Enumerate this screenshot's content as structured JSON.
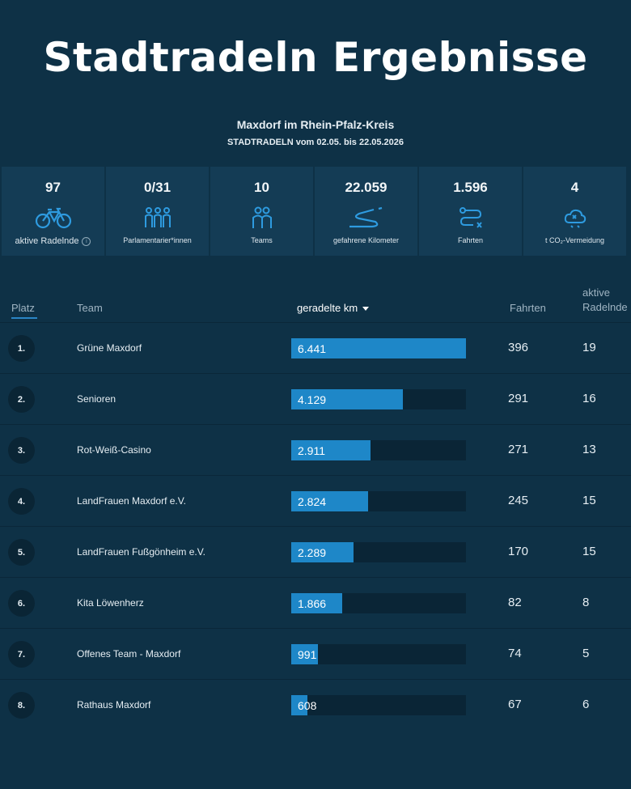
{
  "header": {
    "title": "Stadtradeln Ergebnisse",
    "location": "Maxdorf im Rhein-Pfalz-Kreis",
    "period": "STADTRADELN vom 02.05. bis 22.05.2026"
  },
  "stats": [
    {
      "value": "97",
      "label": "aktive Radelnde",
      "icon": "bicycle-icon"
    },
    {
      "value": "0/31",
      "label": "Parlamentarier*innen",
      "icon": "parliament-members-icon"
    },
    {
      "value": "10",
      "label": "Teams",
      "icon": "team-icon"
    },
    {
      "value": "22.059",
      "label": "gefahrene Kilometer",
      "icon": "road-icon"
    },
    {
      "value": "1.596",
      "label": "Fahrten",
      "icon": "route-icon"
    },
    {
      "value": "4",
      "label": "t CO₂-Vermeidung",
      "icon": "co2-cloud-icon"
    }
  ],
  "table": {
    "headers": {
      "platz": "Platz",
      "team": "Team",
      "km": "geradelte km",
      "fahrten": "Fahrten",
      "radelnde_line1": "aktive",
      "radelnde_line2": "Radelnde"
    },
    "max_km": 6441,
    "accent": "#1e87c8",
    "rows": [
      {
        "rank": "1.",
        "team": "Grüne Maxdorf",
        "km": 6441,
        "km_label": "6.441",
        "fahrten": "396",
        "radelnde": "19"
      },
      {
        "rank": "2.",
        "team": "Senioren",
        "km": 4129,
        "km_label": "4.129",
        "fahrten": "291",
        "radelnde": "16"
      },
      {
        "rank": "3.",
        "team": "Rot-Weiß-Casino",
        "km": 2911,
        "km_label": "2.911",
        "fahrten": "271",
        "radelnde": "13"
      },
      {
        "rank": "4.",
        "team": "LandFrauen Maxdorf e.V.",
        "km": 2824,
        "km_label": "2.824",
        "fahrten": "245",
        "radelnde": "15"
      },
      {
        "rank": "5.",
        "team": "LandFrauen Fußgönheim e.V.",
        "km": 2289,
        "km_label": "2.289",
        "fahrten": "170",
        "radelnde": "15"
      },
      {
        "rank": "6.",
        "team": "Kita Löwenherz",
        "km": 1866,
        "km_label": "1.866",
        "fahrten": "82",
        "radelnde": "8"
      },
      {
        "rank": "7.",
        "team": "Offenes Team - Maxdorf",
        "km": 991,
        "km_label": "991",
        "fahrten": "74",
        "radelnde": "5"
      },
      {
        "rank": "8.",
        "team": "Rathaus Maxdorf",
        "km": 608,
        "km_label": "608",
        "fahrten": "67",
        "radelnde": "6"
      }
    ]
  }
}
